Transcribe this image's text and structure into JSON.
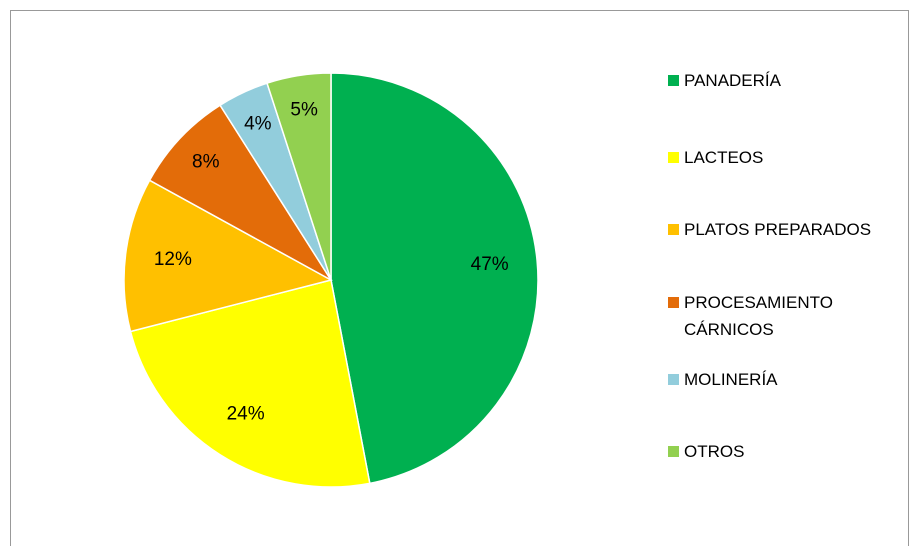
{
  "chart_data": {
    "type": "pie",
    "categories": [
      "PANADERÍA",
      "LACTEOS",
      "PLATOS PREPARADOS",
      "PROCESAMIENTO CÁRNICOS",
      "MOLINERÍA",
      "OTROS"
    ],
    "values": [
      47,
      24,
      12,
      8,
      4,
      5
    ],
    "value_labels": [
      "47%",
      "24%",
      "12%",
      "8%",
      "4%",
      "5%"
    ],
    "colors": [
      "#00b050",
      "#ffff00",
      "#ffc000",
      "#e36c09",
      "#92cddc",
      "#92d050"
    ],
    "legend": "right"
  }
}
